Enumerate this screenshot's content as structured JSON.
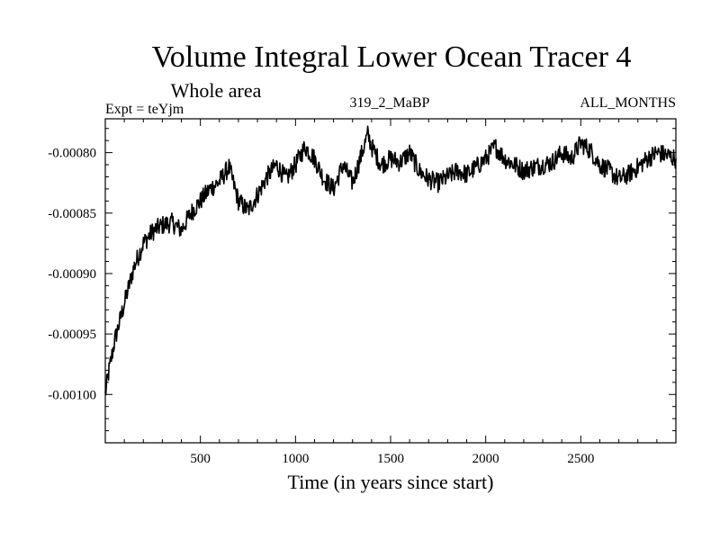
{
  "chart_data": {
    "type": "line",
    "title": "Volume Integral Lower Ocean Tracer 4",
    "subtitle": "Whole area",
    "experiment": "Expt = teYjm",
    "run_label": "319_2_MaBP",
    "months_label": "ALL_MONTHS",
    "xlabel": "Time (in years since start)",
    "ylabel": "",
    "xlim": [
      0,
      3000
    ],
    "ylim": [
      -0.00104,
      -0.000772
    ],
    "x_ticks": [
      {
        "value": 500,
        "label": "500"
      },
      {
        "value": 1000,
        "label": "1000"
      },
      {
        "value": 1500,
        "label": "1500"
      },
      {
        "value": 2000,
        "label": "2000"
      },
      {
        "value": 2500,
        "label": "2500"
      }
    ],
    "y_ticks": [
      {
        "value": -0.0008,
        "label": "-0.00080"
      },
      {
        "value": -0.00085,
        "label": "-0.00085"
      },
      {
        "value": -0.0009,
        "label": "-0.00090"
      },
      {
        "value": -0.00095,
        "label": "-0.00095"
      },
      {
        "value": -0.001,
        "label": "-0.00100"
      }
    ],
    "series": [
      {
        "name": "Volume Integral Lower Ocean Tracer 4",
        "color": "#000000",
        "x": [
          0,
          20,
          50,
          100,
          150,
          200,
          250,
          300,
          350,
          400,
          450,
          500,
          550,
          600,
          650,
          700,
          750,
          800,
          850,
          900,
          950,
          1000,
          1050,
          1100,
          1150,
          1200,
          1250,
          1300,
          1350,
          1380,
          1400,
          1450,
          1500,
          1550,
          1600,
          1650,
          1700,
          1750,
          1800,
          1850,
          1900,
          1950,
          2000,
          2050,
          2100,
          2150,
          2200,
          2250,
          2300,
          2350,
          2400,
          2450,
          2500,
          2550,
          2600,
          2650,
          2700,
          2750,
          2800,
          2850,
          2900,
          2950,
          3000
        ],
        "values": [
          -0.001,
          -0.00098,
          -0.000955,
          -0.000925,
          -0.000895,
          -0.000875,
          -0.000865,
          -0.00086,
          -0.000858,
          -0.000864,
          -0.00085,
          -0.00084,
          -0.00083,
          -0.000824,
          -0.000812,
          -0.00084,
          -0.000848,
          -0.000835,
          -0.00082,
          -0.00081,
          -0.000822,
          -0.00081,
          -0.000795,
          -0.000805,
          -0.000822,
          -0.00083,
          -0.00081,
          -0.000825,
          -0.0008,
          -0.000785,
          -0.000795,
          -0.00081,
          -0.000805,
          -0.000808,
          -0.0008,
          -0.000815,
          -0.000822,
          -0.000825,
          -0.00082,
          -0.000815,
          -0.000818,
          -0.000812,
          -0.000805,
          -0.000795,
          -0.000805,
          -0.00081,
          -0.000815,
          -0.000812,
          -0.00081,
          -0.000808,
          -0.0008,
          -0.000805,
          -0.000792,
          -0.000798,
          -0.00081,
          -0.000815,
          -0.000822,
          -0.000818,
          -0.000812,
          -0.000805,
          -0.0008,
          -0.000802,
          -0.000805
        ]
      }
    ]
  }
}
